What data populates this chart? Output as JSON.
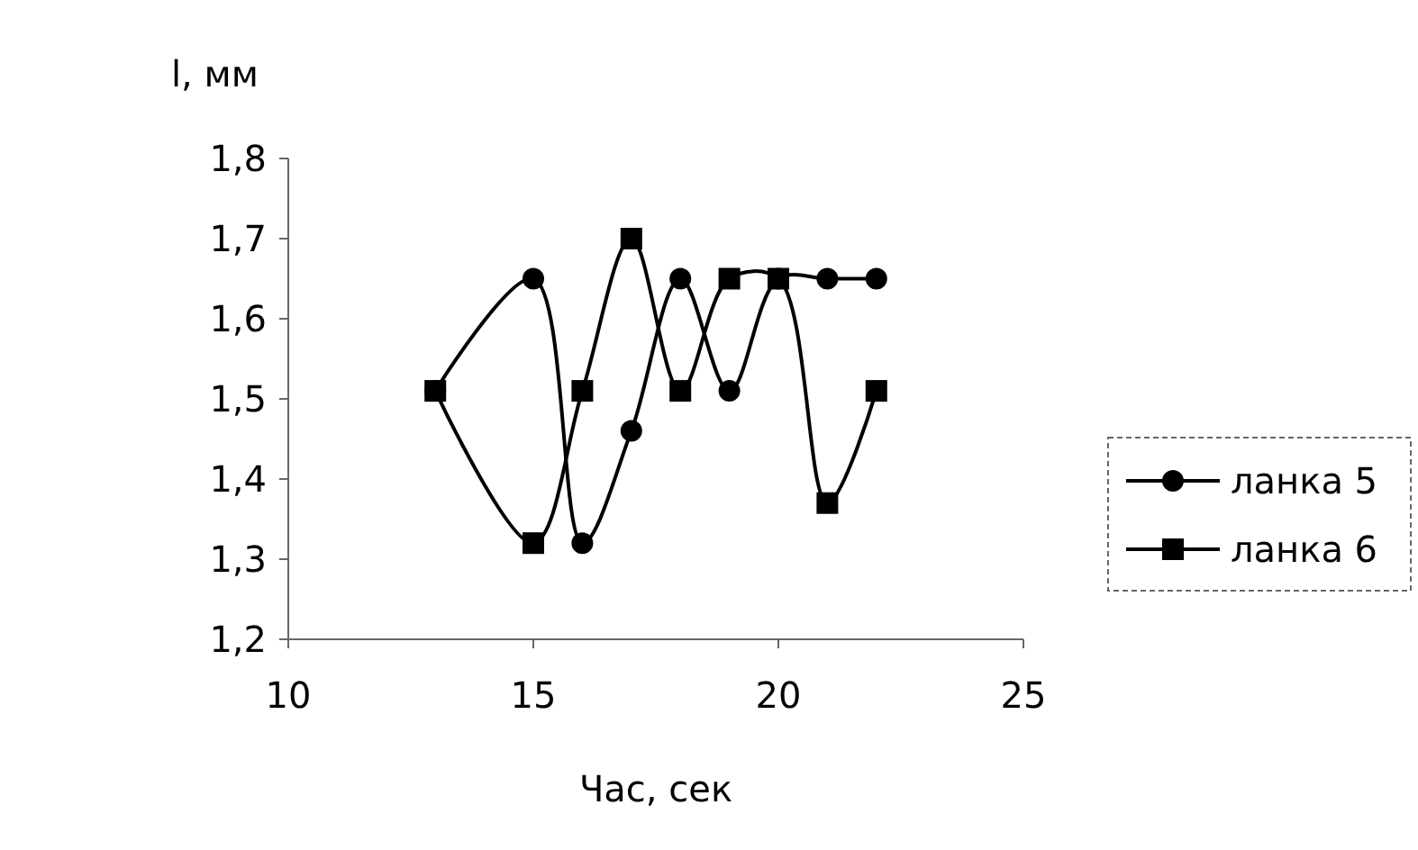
{
  "chart_data": {
    "type": "line",
    "ylabel": "l, мм",
    "xlabel": "Час, сек",
    "x": [
      13,
      15,
      16,
      17,
      18,
      19,
      20,
      21,
      22
    ],
    "series": [
      {
        "name": "ланка 5",
        "color": "#000000",
        "marker": "circle",
        "values": [
          1.51,
          1.65,
          1.32,
          1.46,
          1.65,
          1.51,
          1.65,
          1.65,
          1.65
        ]
      },
      {
        "name": "ланка 6",
        "color": "#000000",
        "marker": "square",
        "values": [
          1.51,
          1.32,
          1.51,
          1.7,
          1.51,
          1.65,
          1.65,
          1.37,
          1.51
        ]
      }
    ],
    "xlim": [
      10,
      25
    ],
    "xticks": [
      10,
      15,
      20,
      25
    ],
    "ylim": [
      1.2,
      1.8
    ],
    "yticks": [
      {
        "value": 1.2,
        "label": "1,2"
      },
      {
        "value": 1.3,
        "label": "1,3"
      },
      {
        "value": 1.4,
        "label": "1,4"
      },
      {
        "value": 1.5,
        "label": "1,5"
      },
      {
        "value": 1.6,
        "label": "1,6"
      },
      {
        "value": 1.7,
        "label": "1,7"
      },
      {
        "value": 1.8,
        "label": "1,8"
      }
    ],
    "grid": false,
    "legend": "right"
  }
}
